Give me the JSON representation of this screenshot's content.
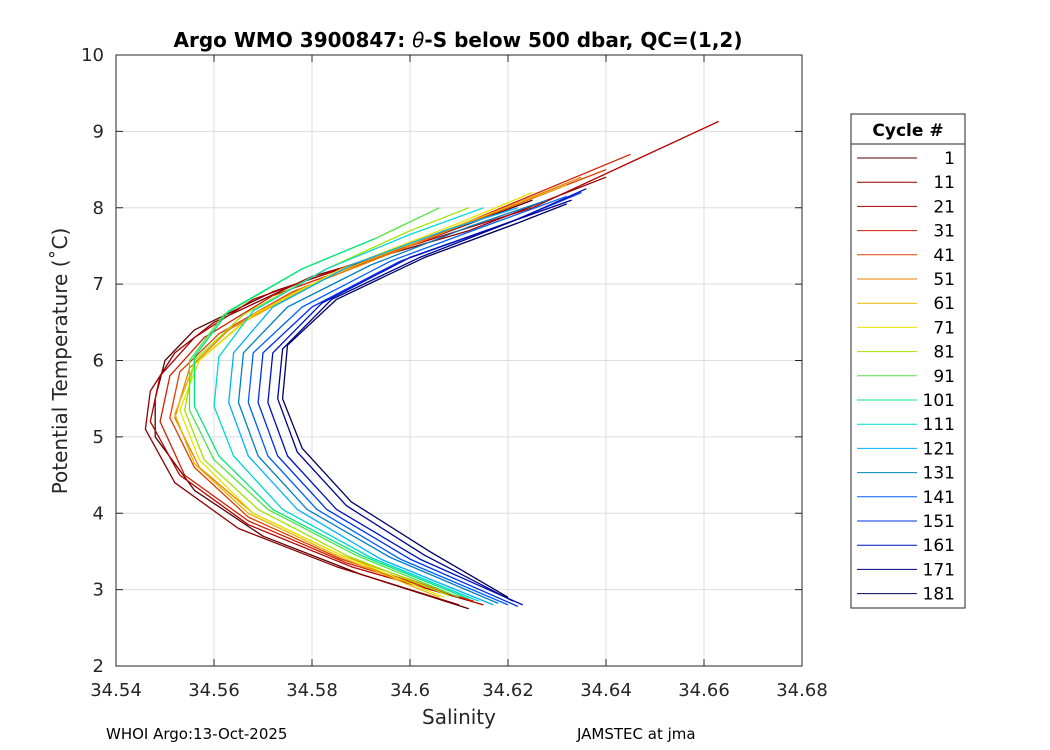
{
  "chart_data": {
    "type": "line",
    "title_prefix": "Argo WMO 3900847: ",
    "title_theta": "θ",
    "title_suffix": "-S below 500 dbar,  QC=(1,2)",
    "xlabel": "Salinity",
    "ylabel": "Potential Temperature (˚C)",
    "xlim": [
      34.54,
      34.68
    ],
    "ylim": [
      2,
      10
    ],
    "x_ticks": [
      34.54,
      34.56,
      34.58,
      34.6,
      34.62,
      34.64,
      34.66,
      34.68
    ],
    "x_tick_labels": [
      "34.54",
      "34.56",
      "34.58",
      "34.6",
      "34.62",
      "34.64",
      "34.66",
      "34.68"
    ],
    "y_ticks": [
      2,
      3,
      4,
      5,
      6,
      7,
      8,
      9,
      10
    ],
    "y_tick_labels": [
      "2",
      "3",
      "4",
      "5",
      "6",
      "7",
      "8",
      "9",
      "10"
    ],
    "grid": true,
    "legend_title": "Cycle #",
    "legend_position": "right, outside plot",
    "legend_entries": [
      {
        "label": "1",
        "color": "#5a0000"
      },
      {
        "label": "11",
        "color": "#8c0000"
      },
      {
        "label": "21",
        "color": "#b40000"
      },
      {
        "label": "31",
        "color": "#d21e00"
      },
      {
        "label": "41",
        "color": "#e04000"
      },
      {
        "label": "51",
        "color": "#e88000"
      },
      {
        "label": "61",
        "color": "#e8b400"
      },
      {
        "label": "71",
        "color": "#e8e400"
      },
      {
        "label": "81",
        "color": "#a0e400"
      },
      {
        "label": "91",
        "color": "#50e440"
      },
      {
        "label": "101",
        "color": "#00e880"
      },
      {
        "label": "111",
        "color": "#00d8d0"
      },
      {
        "label": "121",
        "color": "#00b0ff"
      },
      {
        "label": "131",
        "color": "#0080c0"
      },
      {
        "label": "141",
        "color": "#0060ff"
      },
      {
        "label": "151",
        "color": "#0030f0"
      },
      {
        "label": "161",
        "color": "#0010c0"
      },
      {
        "label": "171",
        "color": "#000090"
      },
      {
        "label": "181",
        "color": "#000060"
      }
    ],
    "series": [
      {
        "name": "1",
        "color": "#5a0000",
        "points": [
          [
            34.612,
            2.75
          ],
          [
            34.59,
            3.2
          ],
          [
            34.57,
            3.7
          ],
          [
            34.556,
            4.3
          ],
          [
            34.548,
            5.0
          ],
          [
            34.548,
            5.5
          ],
          [
            34.55,
            6.0
          ],
          [
            34.556,
            6.4
          ],
          [
            34.572,
            6.9
          ],
          [
            34.6,
            7.5
          ],
          [
            34.625,
            8.1
          ]
        ]
      },
      {
        "name": "11",
        "color": "#8c0000",
        "points": [
          [
            34.61,
            2.8
          ],
          [
            34.585,
            3.3
          ],
          [
            34.565,
            3.8
          ],
          [
            34.552,
            4.4
          ],
          [
            34.546,
            5.1
          ],
          [
            34.547,
            5.6
          ],
          [
            34.552,
            6.1
          ],
          [
            34.56,
            6.5
          ],
          [
            34.58,
            7.1
          ],
          [
            34.612,
            7.7
          ],
          [
            34.64,
            8.4
          ]
        ]
      },
      {
        "name": "21",
        "color": "#b40000",
        "points": [
          [
            34.615,
            2.8
          ],
          [
            34.588,
            3.3
          ],
          [
            34.567,
            3.85
          ],
          [
            34.553,
            4.5
          ],
          [
            34.547,
            5.2
          ],
          [
            34.549,
            5.8
          ],
          [
            34.556,
            6.3
          ],
          [
            34.568,
            6.8
          ],
          [
            34.59,
            7.3
          ],
          [
            34.625,
            8.0
          ],
          [
            34.663,
            9.13
          ]
        ]
      },
      {
        "name": "31",
        "color": "#d21e00",
        "points": [
          [
            34.613,
            2.85
          ],
          [
            34.587,
            3.35
          ],
          [
            34.567,
            3.9
          ],
          [
            34.554,
            4.5
          ],
          [
            34.549,
            5.2
          ],
          [
            34.551,
            5.8
          ],
          [
            34.558,
            6.3
          ],
          [
            34.572,
            6.85
          ],
          [
            34.6,
            7.5
          ],
          [
            34.645,
            8.7
          ]
        ]
      },
      {
        "name": "41",
        "color": "#e04000",
        "points": [
          [
            34.61,
            2.9
          ],
          [
            34.586,
            3.4
          ],
          [
            34.567,
            3.95
          ],
          [
            34.556,
            4.6
          ],
          [
            34.551,
            5.25
          ],
          [
            34.553,
            5.85
          ],
          [
            34.561,
            6.35
          ],
          [
            34.576,
            6.9
          ],
          [
            34.6,
            7.5
          ],
          [
            34.64,
            8.5
          ]
        ]
      },
      {
        "name": "51",
        "color": "#e88000",
        "points": [
          [
            34.608,
            2.95
          ],
          [
            34.586,
            3.45
          ],
          [
            34.568,
            4.0
          ],
          [
            34.557,
            4.6
          ],
          [
            34.552,
            5.25
          ],
          [
            34.555,
            5.9
          ],
          [
            34.563,
            6.4
          ],
          [
            34.578,
            6.95
          ],
          [
            34.602,
            7.55
          ],
          [
            34.635,
            8.4
          ]
        ]
      },
      {
        "name": "61",
        "color": "#e8b400",
        "points": [
          [
            34.606,
            2.9
          ],
          [
            34.585,
            3.45
          ],
          [
            34.567,
            4.0
          ],
          [
            34.556,
            4.65
          ],
          [
            34.552,
            5.3
          ],
          [
            34.556,
            5.95
          ],
          [
            34.566,
            6.5
          ],
          [
            34.583,
            7.1
          ],
          [
            34.607,
            7.7
          ],
          [
            34.632,
            8.3
          ]
        ]
      },
      {
        "name": "71",
        "color": "#e8e400",
        "points": [
          [
            34.607,
            2.9
          ],
          [
            34.586,
            3.45
          ],
          [
            34.568,
            4.0
          ],
          [
            34.557,
            4.7
          ],
          [
            34.553,
            5.35
          ],
          [
            34.557,
            6.0
          ],
          [
            34.568,
            6.6
          ],
          [
            34.586,
            7.2
          ],
          [
            34.61,
            7.8
          ],
          [
            34.625,
            8.2
          ]
        ]
      },
      {
        "name": "81",
        "color": "#a0e400",
        "points": [
          [
            34.608,
            2.92
          ],
          [
            34.587,
            3.45
          ],
          [
            34.569,
            4.05
          ],
          [
            34.558,
            4.7
          ],
          [
            34.554,
            5.35
          ],
          [
            34.556,
            6.0
          ],
          [
            34.566,
            6.6
          ],
          [
            34.583,
            7.2
          ],
          [
            34.6,
            7.7
          ],
          [
            34.612,
            8.0
          ]
        ]
      },
      {
        "name": "91",
        "color": "#50e440",
        "points": [
          [
            34.61,
            2.9
          ],
          [
            34.589,
            3.45
          ],
          [
            34.571,
            4.05
          ],
          [
            34.56,
            4.7
          ],
          [
            34.555,
            5.35
          ],
          [
            34.555,
            6.0
          ],
          [
            34.562,
            6.6
          ],
          [
            34.578,
            7.2
          ],
          [
            34.593,
            7.6
          ],
          [
            34.606,
            8.0
          ]
        ]
      },
      {
        "name": "101",
        "color": "#00e880",
        "points": [
          [
            34.612,
            2.88
          ],
          [
            34.59,
            3.45
          ],
          [
            34.572,
            4.05
          ],
          [
            34.561,
            4.75
          ],
          [
            34.556,
            5.4
          ],
          [
            34.556,
            6.05
          ],
          [
            34.563,
            6.65
          ],
          [
            34.578,
            7.2
          ],
          [
            34.593,
            7.6
          ]
        ]
      },
      {
        "name": "111",
        "color": "#00d8d0",
        "points": [
          [
            34.614,
            2.85
          ],
          [
            34.592,
            3.42
          ],
          [
            34.574,
            4.05
          ],
          [
            34.564,
            4.75
          ],
          [
            34.56,
            5.4
          ],
          [
            34.561,
            6.05
          ],
          [
            34.568,
            6.65
          ],
          [
            34.583,
            7.2
          ],
          [
            34.6,
            7.65
          ],
          [
            34.615,
            8.0
          ]
        ]
      },
      {
        "name": "121",
        "color": "#00b0ff",
        "points": [
          [
            34.617,
            2.8
          ],
          [
            34.594,
            3.4
          ],
          [
            34.577,
            4.05
          ],
          [
            34.567,
            4.75
          ],
          [
            34.563,
            5.45
          ],
          [
            34.564,
            6.1
          ],
          [
            34.572,
            6.7
          ],
          [
            34.588,
            7.25
          ],
          [
            34.607,
            7.7
          ],
          [
            34.622,
            8.0
          ]
        ]
      },
      {
        "name": "131",
        "color": "#0080c0",
        "points": [
          [
            34.618,
            2.82
          ],
          [
            34.596,
            3.42
          ],
          [
            34.579,
            4.05
          ],
          [
            34.569,
            4.75
          ],
          [
            34.565,
            5.45
          ],
          [
            34.566,
            6.1
          ],
          [
            34.575,
            6.7
          ],
          [
            34.592,
            7.25
          ],
          [
            34.612,
            7.75
          ],
          [
            34.628,
            8.1
          ]
        ]
      },
      {
        "name": "141",
        "color": "#0060ff",
        "points": [
          [
            34.62,
            2.8
          ],
          [
            34.598,
            3.4
          ],
          [
            34.581,
            4.05
          ],
          [
            34.571,
            4.75
          ],
          [
            34.567,
            5.45
          ],
          [
            34.568,
            6.1
          ],
          [
            34.578,
            6.7
          ],
          [
            34.596,
            7.3
          ],
          [
            34.617,
            7.8
          ],
          [
            34.632,
            8.15
          ]
        ]
      },
      {
        "name": "151",
        "color": "#0030f0",
        "points": [
          [
            34.622,
            2.78
          ],
          [
            34.6,
            3.4
          ],
          [
            34.583,
            4.05
          ],
          [
            34.573,
            4.75
          ],
          [
            34.569,
            5.45
          ],
          [
            34.57,
            6.1
          ],
          [
            34.58,
            6.7
          ],
          [
            34.598,
            7.3
          ],
          [
            34.62,
            7.8
          ],
          [
            34.635,
            8.2
          ]
        ]
      },
      {
        "name": "161",
        "color": "#0010c0",
        "points": [
          [
            34.623,
            2.8
          ],
          [
            34.602,
            3.4
          ],
          [
            34.585,
            4.05
          ],
          [
            34.575,
            4.75
          ],
          [
            34.571,
            5.45
          ],
          [
            34.572,
            6.1
          ],
          [
            34.582,
            6.75
          ],
          [
            34.6,
            7.35
          ],
          [
            34.622,
            7.85
          ],
          [
            34.636,
            8.25
          ]
        ]
      },
      {
        "name": "171",
        "color": "#000090",
        "points": [
          [
            34.621,
            2.85
          ],
          [
            34.603,
            3.45
          ],
          [
            34.587,
            4.1
          ],
          [
            34.577,
            4.8
          ],
          [
            34.573,
            5.5
          ],
          [
            34.574,
            6.15
          ],
          [
            34.584,
            6.8
          ],
          [
            34.602,
            7.35
          ],
          [
            34.622,
            7.85
          ],
          [
            34.633,
            8.1
          ]
        ]
      },
      {
        "name": "181",
        "color": "#000060",
        "points": [
          [
            34.62,
            2.9
          ],
          [
            34.604,
            3.5
          ],
          [
            34.588,
            4.15
          ],
          [
            34.578,
            4.85
          ],
          [
            34.574,
            5.5
          ],
          [
            34.575,
            6.2
          ],
          [
            34.585,
            6.8
          ],
          [
            34.603,
            7.35
          ],
          [
            34.622,
            7.8
          ],
          [
            34.632,
            8.05
          ]
        ]
      }
    ]
  },
  "footer": {
    "left": "WHOI Argo:13-Oct-2025",
    "right": "JAMSTEC at jma"
  }
}
